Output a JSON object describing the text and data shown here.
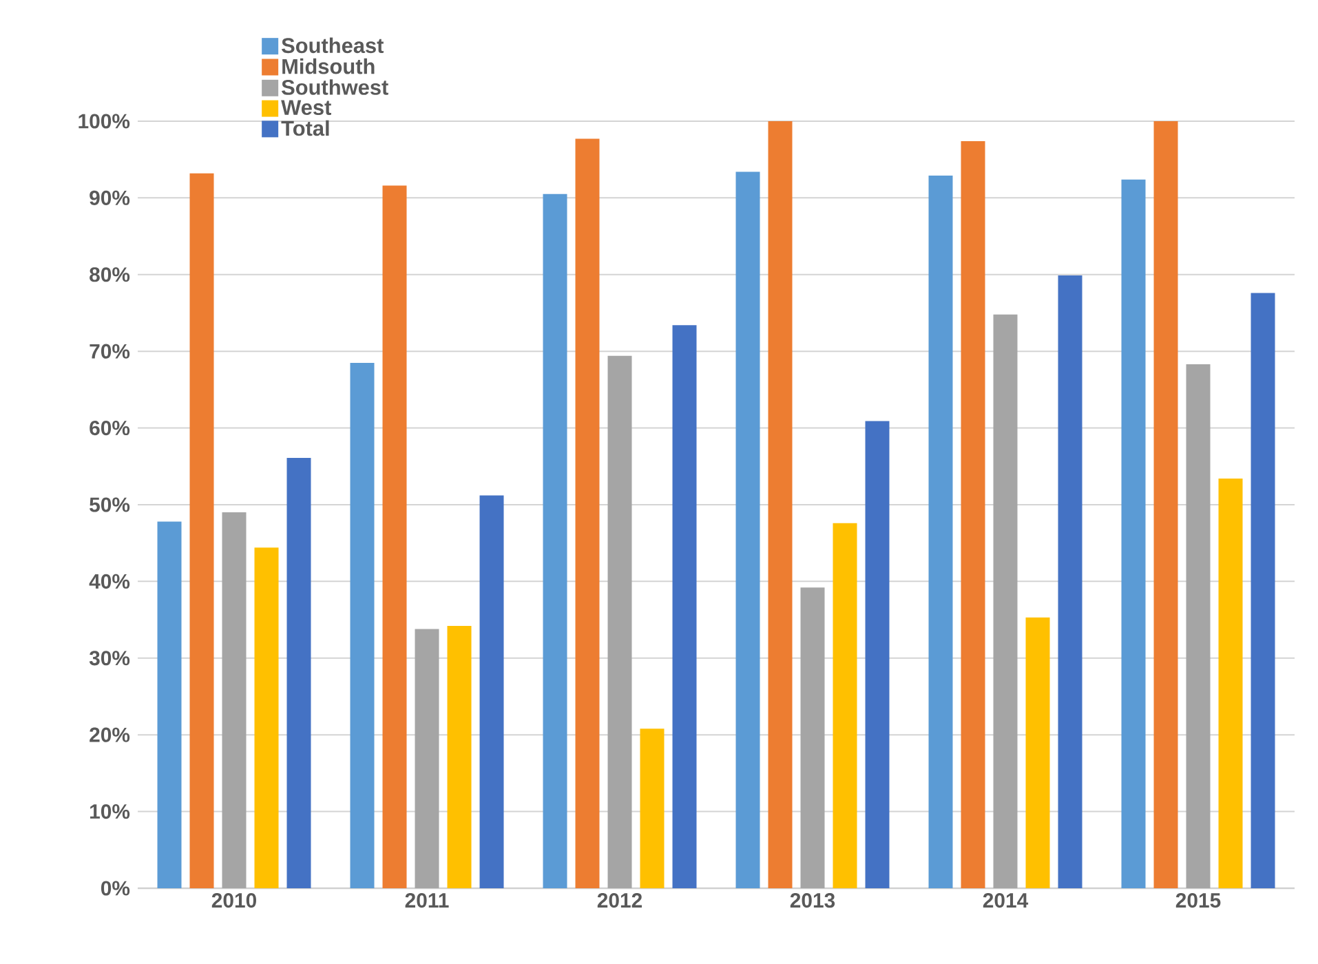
{
  "chart_data": {
    "type": "bar",
    "categories": [
      "2010",
      "2011",
      "2012",
      "2013",
      "2014",
      "2015"
    ],
    "series": [
      {
        "name": "Southeast",
        "color": "#5b9bd5",
        "values": [
          47.8,
          68.5,
          90.5,
          93.4,
          92.9,
          92.4
        ]
      },
      {
        "name": "Midsouth",
        "color": "#ed7d31",
        "values": [
          93.2,
          91.6,
          97.7,
          100,
          97.4,
          100
        ]
      },
      {
        "name": "Southwest",
        "color": "#a5a5a5",
        "values": [
          49.0,
          33.8,
          69.4,
          39.2,
          74.8,
          68.3
        ]
      },
      {
        "name": "West",
        "color": "#ffc000",
        "values": [
          44.4,
          34.2,
          20.8,
          47.6,
          35.3,
          53.4
        ]
      },
      {
        "name": "Total",
        "color": "#4472c4",
        "values": [
          56.1,
          51.2,
          73.4,
          60.9,
          79.9,
          77.6
        ]
      }
    ],
    "ylim": [
      0,
      100
    ],
    "yticks": [
      {
        "value": 0,
        "label": "0%"
      },
      {
        "value": 10,
        "label": "10%"
      },
      {
        "value": 20,
        "label": "20%"
      },
      {
        "value": 30,
        "label": "30%"
      },
      {
        "value": 40,
        "label": "40%"
      },
      {
        "value": 50,
        "label": "50%"
      },
      {
        "value": 60,
        "label": "60%"
      },
      {
        "value": 70,
        "label": "70%"
      },
      {
        "value": 80,
        "label": "80%"
      },
      {
        "value": 90,
        "label": "90%"
      },
      {
        "value": 100,
        "label": "100%"
      }
    ],
    "grid": "y",
    "legend": "top left"
  }
}
